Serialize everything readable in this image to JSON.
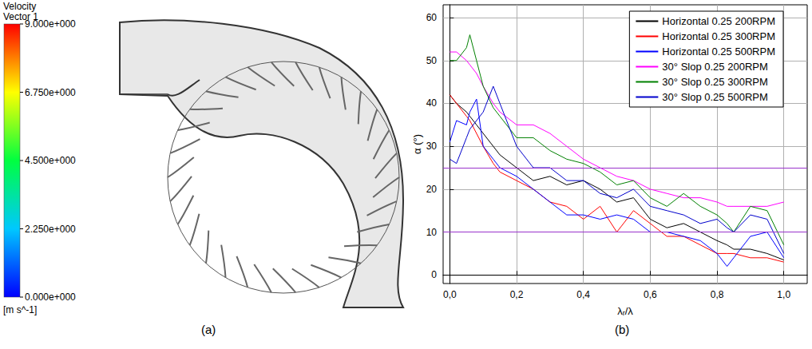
{
  "panel_a": {
    "panel_label": "(a)",
    "colorbar": {
      "title": [
        "Velocity",
        "Vector 1"
      ],
      "unit": "[m s^-1]",
      "range": [
        0,
        9
      ],
      "ticks": [
        {
          "value": 9,
          "label": "9.000e+000"
        },
        {
          "value": 6.75,
          "label": "6.750e+000"
        },
        {
          "value": 4.5,
          "label": "4.500e+000"
        },
        {
          "value": 2.25,
          "label": "2.250e+000"
        },
        {
          "value": 0,
          "label": "0.000e+000"
        }
      ]
    }
  },
  "chart_data": {
    "type": "line",
    "panel_label": "(b)",
    "x_label": "λᵣ/λ",
    "y_label": "α (°)",
    "xlim": [
      -0.02,
      1.07
    ],
    "ylim": [
      -2,
      63
    ],
    "xticks": [
      {
        "value": 0,
        "label": "0,0"
      },
      {
        "value": 0.2,
        "label": "0,2"
      },
      {
        "value": 0.4,
        "label": "0,4"
      },
      {
        "value": 0.6,
        "label": "0,6"
      },
      {
        "value": 0.8,
        "label": "0,8"
      },
      {
        "value": 1,
        "label": "1,0"
      }
    ],
    "yticks": [
      0,
      10,
      20,
      30,
      40,
      50,
      60
    ],
    "grid": true,
    "legend": "upper right",
    "reference_lines": [
      {
        "value": 25,
        "color": "#9933cc"
      },
      {
        "value": 10,
        "color": "#9933cc"
      }
    ],
    "x": [
      0,
      0.02,
      0.05,
      0.06,
      0.08,
      0.1,
      0.13,
      0.15,
      0.2,
      0.25,
      0.3,
      0.35,
      0.4,
      0.45,
      0.5,
      0.55,
      0.6,
      0.65,
      0.7,
      0.75,
      0.8,
      0.83,
      0.85,
      0.9,
      0.95,
      1.0
    ],
    "series": [
      {
        "name": "Horizontal 0.25 200RPM",
        "color": "#000000",
        "values": [
          42,
          40,
          38,
          37,
          35,
          33,
          30,
          28,
          25,
          22,
          23,
          21,
          22,
          20,
          17,
          18,
          13,
          11,
          12,
          10,
          8,
          7,
          6,
          6,
          5,
          3.5
        ]
      },
      {
        "name": "Horizontal 0.25 300RPM",
        "color": "#ff0000",
        "values": [
          42,
          40,
          37,
          36,
          33,
          30,
          26,
          24,
          22,
          20,
          17,
          16,
          13,
          16,
          10,
          15,
          12,
          9,
          9,
          7,
          5,
          5,
          5,
          4,
          4,
          3
        ]
      },
      {
        "name": "Horizontal 0.25 500RPM",
        "color": "#0000ff",
        "values": [
          31,
          36,
          35,
          38,
          41,
          30,
          27,
          25,
          23,
          20,
          17,
          14,
          14,
          13,
          14,
          13,
          10,
          10,
          9,
          8,
          5,
          2,
          4,
          9,
          10,
          4
        ]
      },
      {
        "name": "30° Slop 0.25 200RPM",
        "color": "#ff00ff",
        "values": [
          52,
          52,
          50,
          49,
          47,
          44,
          40,
          38,
          35,
          35,
          33,
          30,
          27,
          25,
          23,
          22,
          20,
          19,
          18,
          18,
          17,
          16,
          16,
          16,
          16,
          17
        ]
      },
      {
        "name": "30° Slop 0.25 300RPM",
        "color": "#008000",
        "values": [
          50,
          50,
          53,
          56,
          50,
          44,
          39,
          37,
          32,
          32,
          29,
          27,
          26,
          24,
          21,
          22,
          18,
          16,
          19,
          16,
          14,
          12,
          10,
          16,
          15,
          7
        ]
      },
      {
        "name": "30° Slop 0.25 500RPM",
        "color": "#0000cc",
        "values": [
          27,
          26,
          32,
          34,
          36,
          38,
          44,
          40,
          30,
          25,
          25,
          22,
          22,
          19,
          18,
          20,
          16,
          15,
          14,
          12,
          13,
          11,
          10,
          14,
          13,
          5
        ]
      }
    ]
  }
}
